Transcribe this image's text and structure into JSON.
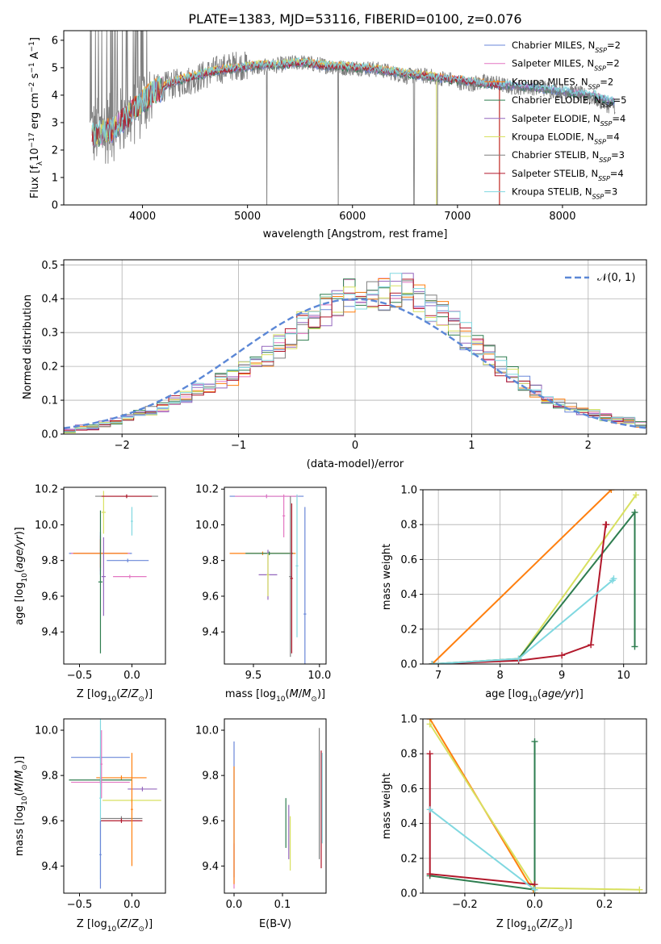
{
  "title": "PLATE=1383, MJD=53116, FIBERID=0100, z=0.076",
  "colors": [
    "#6a87d8",
    "#e377c2",
    "#ff7f0e",
    "#2e7d4f",
    "#9467bd",
    "#d8e060",
    "#7f7f7f",
    "#b2182b",
    "#80d8e0"
  ],
  "legend": [
    "Chabrier MILES, N_SSP=2",
    "Salpeter MILES, N_SSP=2",
    "Kroupa MILES, N_SSP=2",
    "Chabrier ELODIE, N_SSP=5",
    "Salpeter ELODIE, N_SSP=4",
    "Kroupa ELODIE, N_SSP=4",
    "Chabrier STELIB, N_SSP=3",
    "Salpeter STELIB, N_SSP=4",
    "Kroupa STELIB, N_SSP=3"
  ],
  "chart_data": [
    {
      "type": "line",
      "name": "spectrum",
      "xlabel": "wavelength [Angstrom, rest frame]",
      "ylabel": "Flux [f_λ10^-17 erg cm^-2 s^-1 A^-1]",
      "xlim": [
        3250,
        8800
      ],
      "ylim": [
        0,
        6.35
      ],
      "xticks": [
        4000,
        5000,
        6000,
        7000,
        8000
      ],
      "yticks": [
        0,
        1,
        2,
        3,
        4,
        5,
        6
      ],
      "grid": false,
      "data_wavelength": [
        3500,
        3700,
        3900,
        4100,
        4300,
        4500,
        4700,
        4900,
        5100,
        5300,
        5500,
        5700,
        5900,
        6100,
        6300,
        6500,
        6700,
        6900,
        7100,
        7300,
        7500,
        7700,
        7900,
        8100,
        8300,
        8450
      ],
      "data_flux": [
        2.6,
        2.8,
        3.3,
        4.2,
        4.4,
        4.6,
        4.9,
        5.1,
        5.0,
        5.1,
        5.2,
        5.1,
        5.0,
        5.0,
        4.9,
        4.7,
        4.7,
        4.6,
        4.4,
        4.5,
        4.3,
        4.3,
        4.2,
        4.1,
        3.9,
        3.6
      ],
      "model_flux": [
        2.5,
        2.7,
        3.4,
        4.1,
        4.5,
        4.7,
        4.9,
        5.0,
        5.1,
        5.1,
        5.2,
        5.1,
        5.05,
        5.0,
        4.9,
        4.8,
        4.7,
        4.6,
        4.5,
        4.4,
        4.35,
        4.3,
        4.2,
        4.1,
        4.0,
        3.8
      ]
    },
    {
      "type": "step",
      "name": "residuals",
      "xlabel": "(data-model)/error",
      "ylabel": "Normed distribution",
      "xlim": [
        -2.5,
        2.5
      ],
      "ylim": [
        0,
        0.515
      ],
      "xticks": [
        -2,
        -1,
        0,
        1,
        2
      ],
      "yticks": [
        0.0,
        0.1,
        0.2,
        0.3,
        0.4,
        0.5
      ],
      "grid": true,
      "bin_start": -2.5,
      "bin_width": 0.1,
      "histogram": [
        0.01,
        0.02,
        0.02,
        0.03,
        0.04,
        0.05,
        0.06,
        0.07,
        0.08,
        0.1,
        0.11,
        0.13,
        0.14,
        0.16,
        0.17,
        0.19,
        0.21,
        0.23,
        0.26,
        0.29,
        0.32,
        0.35,
        0.37,
        0.39,
        0.41,
        0.42,
        0.41,
        0.42,
        0.43,
        0.42,
        0.4,
        0.38,
        0.35,
        0.32,
        0.29,
        0.26,
        0.23,
        0.2,
        0.18,
        0.15,
        0.13,
        0.11,
        0.09,
        0.08,
        0.07,
        0.06,
        0.05,
        0.04,
        0.04,
        0.03
      ],
      "normal_legend": "𝒩(0, 1)"
    },
    {
      "type": "errorbar",
      "name": "age-vs-Z",
      "xlabel": "Z [log10(Z/Z⊙)]",
      "ylabel": "age [log10(age/yr)]",
      "xlim": [
        -0.65,
        0.32
      ],
      "ylim": [
        9.22,
        10.21
      ],
      "xticks": [
        -0.5,
        0.0
      ],
      "yticks": [
        9.4,
        9.6,
        9.8,
        10.0,
        10.2
      ],
      "points": [
        {
          "x": -0.3,
          "y": 9.84,
          "xerr": 0.3,
          "yerr": 0.12
        },
        {
          "x": -0.3,
          "y": 9.84,
          "xerr": 0.28,
          "yerr": 0.1
        },
        {
          "x": -0.3,
          "y": 9.84,
          "xerr": 0.26,
          "yerr": 0.08
        },
        {
          "x": -0.3,
          "y": 9.68,
          "xerr": 0.02,
          "yerr": 0.4
        },
        {
          "x": -0.27,
          "y": 9.71,
          "xerr": 0.02,
          "yerr": 0.22
        },
        {
          "x": -0.27,
          "y": 10.07,
          "xerr": 0.02,
          "yerr": 0.12
        },
        {
          "x": -0.05,
          "y": 10.16,
          "xerr": 0.3,
          "yerr": 0.01
        },
        {
          "x": -0.05,
          "y": 10.16,
          "xerr": 0.24,
          "yerr": 0.01
        },
        {
          "x": 0.0,
          "y": 10.02,
          "xerr": 0.01,
          "yerr": 0.08
        },
        {
          "x": -0.04,
          "y": 9.8,
          "xerr": 0.2,
          "yerr": 0.01
        },
        {
          "x": -0.02,
          "y": 9.71,
          "xerr": 0.16,
          "yerr": 0.01
        }
      ]
    },
    {
      "type": "errorbar",
      "name": "age-vs-mass",
      "xlabel": "mass [log10(M/M⊙)]",
      "ylabel": "",
      "xlim": [
        9.28,
        10.05
      ],
      "ylim": [
        9.22,
        10.21
      ],
      "xticks": [
        9.5,
        10.0
      ],
      "yticks": [
        9.4,
        9.6,
        9.8,
        10.0,
        10.2
      ],
      "points": [
        {
          "x": 9.6,
          "y": 10.16,
          "xerr": 0.28,
          "yerr": 0.01
        },
        {
          "x": 9.6,
          "y": 10.16,
          "xerr": 0.24,
          "yerr": 0.01
        },
        {
          "x": 9.57,
          "y": 9.84,
          "xerr": 0.25,
          "yerr": 0.01
        },
        {
          "x": 9.62,
          "y": 9.84,
          "xerr": 0.18,
          "yerr": 0.01
        },
        {
          "x": 9.61,
          "y": 9.72,
          "xerr": 0.07,
          "yerr": 0.14
        },
        {
          "x": 9.61,
          "y": 9.72,
          "xerr": 0.01,
          "yerr": 0.12
        },
        {
          "x": 9.78,
          "y": 9.71,
          "xerr": 0.01,
          "yerr": 0.45
        },
        {
          "x": 9.79,
          "y": 9.7,
          "xerr": 0.01,
          "yerr": 0.42
        },
        {
          "x": 9.83,
          "y": 9.77,
          "xerr": 0.01,
          "yerr": 0.4
        },
        {
          "x": 9.89,
          "y": 9.5,
          "xerr": 0.01,
          "yerr": 0.6
        },
        {
          "x": 9.73,
          "y": 10.05,
          "xerr": 0.01,
          "yerr": 0.12
        }
      ]
    },
    {
      "type": "line",
      "name": "weight-vs-age",
      "xlabel": "age [log10(age/yr)]",
      "ylabel": "mass weight",
      "xlim": [
        6.75,
        10.37
      ],
      "ylim": [
        0,
        1
      ],
      "xticks": [
        7,
        8,
        9,
        10
      ],
      "yticks": [
        0.0,
        0.2,
        0.4,
        0.6,
        0.8,
        1.0
      ],
      "grid": true,
      "series": [
        {
          "x": [
            6.9,
            9.8
          ],
          "y": [
            0.0,
            1.0
          ]
        },
        {
          "x": [
            6.9,
            8.3,
            10.2
          ],
          "y": [
            0.0,
            0.03,
            0.97
          ]
        },
        {
          "x": [
            6.9,
            8.3,
            10.18,
            10.18
          ],
          "y": [
            0.0,
            0.03,
            0.87,
            0.1
          ]
        },
        {
          "x": [
            6.9,
            8.3,
            9.0,
            9.47,
            9.71,
            9.72
          ],
          "y": [
            0.0,
            0.02,
            0.05,
            0.11,
            0.8,
            0.8
          ]
        },
        {
          "x": [
            6.9,
            8.3,
            9.82,
            9.84
          ],
          "y": [
            0.0,
            0.03,
            0.48,
            0.49
          ]
        }
      ]
    },
    {
      "type": "errorbar",
      "name": "mass-vs-Z",
      "xlabel": "Z [log10(Z/Z⊙)]",
      "ylabel": "mass [log10(M/M⊙)]",
      "xlim": [
        -0.65,
        0.32
      ],
      "ylim": [
        9.28,
        10.05
      ],
      "xticks": [
        -0.5,
        0.0
      ],
      "yticks": [
        9.4,
        9.6,
        9.8,
        10.0
      ],
      "points": [
        {
          "x": -0.3,
          "y": 9.88,
          "xerr": 0.28,
          "yerr": 0.01
        },
        {
          "x": -0.3,
          "y": 9.77,
          "xerr": 0.28,
          "yerr": 0.01
        },
        {
          "x": -0.1,
          "y": 9.79,
          "xerr": 0.24,
          "yerr": 0.01
        },
        {
          "x": -0.3,
          "y": 9.78,
          "xerr": 0.3,
          "yerr": 0.01
        },
        {
          "x": 0.1,
          "y": 9.74,
          "xerr": 0.14,
          "yerr": 0.01
        },
        {
          "x": 0.0,
          "y": 9.69,
          "xerr": 0.28,
          "yerr": 0.01
        },
        {
          "x": -0.1,
          "y": 9.61,
          "xerr": 0.2,
          "yerr": 0.01
        },
        {
          "x": -0.1,
          "y": 9.6,
          "xerr": 0.2,
          "yerr": 0.01
        },
        {
          "x": -0.3,
          "y": 9.7,
          "xerr": 0.01,
          "yerr": 0.36
        },
        {
          "x": -0.3,
          "y": 9.45,
          "xerr": 0.01,
          "yerr": 0.15
        },
        {
          "x": -0.29,
          "y": 9.85,
          "xerr": 0.01,
          "yerr": 0.15
        },
        {
          "x": 0.0,
          "y": 9.65,
          "xerr": 0.01,
          "yerr": 0.25
        }
      ]
    },
    {
      "type": "errorbar",
      "name": "mass-vs-EBV",
      "xlabel": "E(B-V)",
      "ylabel": "",
      "xlim": [
        -0.02,
        0.19
      ],
      "ylim": [
        9.28,
        10.05
      ],
      "xticks": [
        0.0,
        0.1
      ],
      "yticks": [
        9.4,
        9.6,
        9.8,
        10.0
      ],
      "points": [
        {
          "x": 0.0,
          "y": 9.65,
          "xerr": 0.0,
          "yerr": 0.3
        },
        {
          "x": 0.0,
          "y": 9.4,
          "xerr": 0.0,
          "yerr": 0.1
        },
        {
          "x": 0.0,
          "y": 9.58,
          "xerr": 0.0,
          "yerr": 0.26
        },
        {
          "x": 0.107,
          "y": 9.59,
          "xerr": 0.0,
          "yerr": 0.11
        },
        {
          "x": 0.113,
          "y": 9.55,
          "xerr": 0.0,
          "yerr": 0.12
        },
        {
          "x": 0.116,
          "y": 9.5,
          "xerr": 0.0,
          "yerr": 0.12
        },
        {
          "x": 0.176,
          "y": 9.72,
          "xerr": 0.0,
          "yerr": 0.29
        },
        {
          "x": 0.18,
          "y": 9.65,
          "xerr": 0.0,
          "yerr": 0.26
        },
        {
          "x": 0.182,
          "y": 9.7,
          "xerr": 0.0,
          "yerr": 0.2
        }
      ]
    },
    {
      "type": "line",
      "name": "weight-vs-Z",
      "xlabel": "Z [log10(Z/Z⊙)]",
      "ylabel": "mass weight",
      "xlim": [
        -0.32,
        0.32
      ],
      "ylim": [
        0,
        1
      ],
      "xticks": [
        -0.2,
        0.0,
        0.2
      ],
      "yticks": [
        0.0,
        0.2,
        0.4,
        0.6,
        0.8,
        1.0
      ],
      "grid": true,
      "series": [
        {
          "x": [
            -0.3,
            0.0
          ],
          "y": [
            1.0,
            0.0
          ]
        },
        {
          "x": [
            -0.3,
            0.0,
            0.3
          ],
          "y": [
            0.97,
            0.03,
            0.02
          ]
        },
        {
          "x": [
            -0.3,
            0.0,
            0.0
          ],
          "y": [
            0.1,
            0.02,
            0.87
          ]
        },
        {
          "x": [
            -0.3,
            -0.3,
            0.0
          ],
          "y": [
            0.8,
            0.11,
            0.05
          ]
        },
        {
          "x": [
            -0.3,
            0.0
          ],
          "y": [
            0.48,
            0.02
          ]
        }
      ]
    }
  ]
}
